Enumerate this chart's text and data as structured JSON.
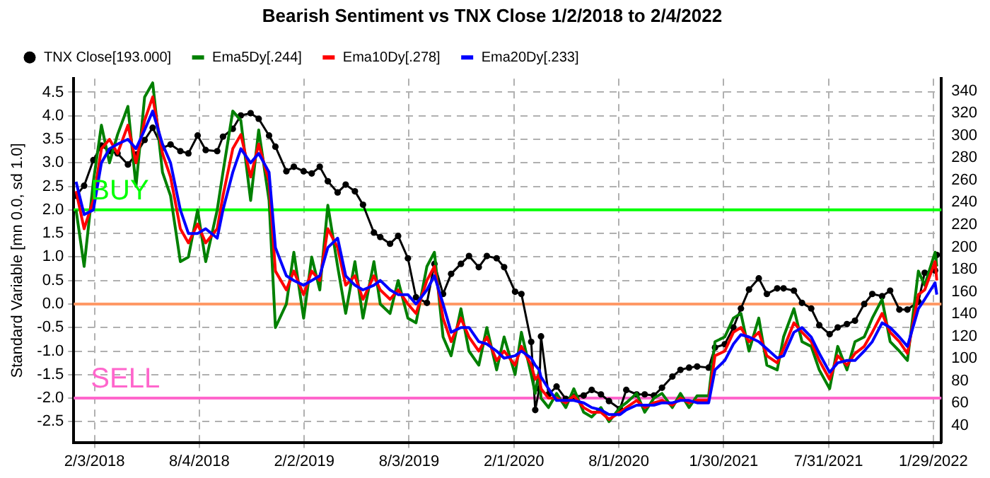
{
  "chart_data": {
    "type": "line",
    "title": "Bearish Sentiment vs TNX Close 1/2/2018 to 2/4/2022",
    "ylabel": "Standard Variable [mn 0.0, sd 1.0]",
    "x": [
      "2018-01-02",
      "2018-01-16",
      "2018-02-01",
      "2018-02-15",
      "2018-03-01",
      "2018-03-15",
      "2018-04-02",
      "2018-04-16",
      "2018-05-01",
      "2018-05-15",
      "2018-06-01",
      "2018-06-15",
      "2018-07-02",
      "2018-07-16",
      "2018-08-01",
      "2018-08-15",
      "2018-09-04",
      "2018-09-14",
      "2018-10-01",
      "2018-10-15",
      "2018-11-01",
      "2018-11-15",
      "2018-12-03",
      "2018-12-14",
      "2019-01-02",
      "2019-01-15",
      "2019-02-01",
      "2019-02-15",
      "2019-03-01",
      "2019-03-15",
      "2019-04-01",
      "2019-04-15",
      "2019-05-01",
      "2019-05-15",
      "2019-06-03",
      "2019-06-14",
      "2019-07-01",
      "2019-07-15",
      "2019-08-01",
      "2019-08-15",
      "2019-09-03",
      "2019-09-16",
      "2019-10-01",
      "2019-10-15",
      "2019-11-01",
      "2019-11-15",
      "2019-12-02",
      "2019-12-16",
      "2020-01-02",
      "2020-01-15",
      "2020-02-03",
      "2020-02-14",
      "2020-03-02",
      "2020-03-09",
      "2020-03-16",
      "2020-03-19",
      "2020-04-01",
      "2020-04-15",
      "2020-05-01",
      "2020-05-15",
      "2020-06-01",
      "2020-06-15",
      "2020-07-01",
      "2020-07-15",
      "2020-08-03",
      "2020-08-14",
      "2020-09-01",
      "2020-09-15",
      "2020-10-01",
      "2020-10-15",
      "2020-11-02",
      "2020-11-16",
      "2020-12-01",
      "2020-12-15",
      "2021-01-04",
      "2021-01-15",
      "2021-02-01",
      "2021-02-16",
      "2021-03-01",
      "2021-03-15",
      "2021-04-01",
      "2021-04-15",
      "2021-05-03",
      "2021-05-14",
      "2021-06-01",
      "2021-06-15",
      "2021-07-01",
      "2021-07-15",
      "2021-08-02",
      "2021-08-16",
      "2021-09-01",
      "2021-09-15",
      "2021-10-01",
      "2021-10-15",
      "2021-11-01",
      "2021-11-15",
      "2021-12-01",
      "2021-12-15",
      "2022-01-03",
      "2022-01-14",
      "2022-02-01",
      "2022-02-04"
    ],
    "series": [
      {
        "name": "TNX Close[193.000]",
        "color": "#000000",
        "axis": "y2",
        "marker": "circle",
        "values": [
          246,
          255,
          278,
          291,
          286,
          284,
          274,
          283,
          296,
          307,
          289,
          292,
          286,
          284,
          300,
          287,
          286,
          299,
          306,
          318,
          320,
          315,
          300,
          290,
          268,
          272,
          268,
          266,
          272,
          259,
          249,
          256,
          250,
          238,
          213,
          209,
          203,
          210,
          190,
          155,
          150,
          185,
          158,
          176,
          185,
          192,
          182,
          192,
          190,
          182,
          160,
          158,
          115,
          54,
          73,
          120,
          68,
          75,
          64,
          66,
          67,
          72,
          68,
          62,
          55,
          72,
          68,
          68,
          67,
          74,
          84,
          90,
          92,
          93,
          92,
          110,
          113,
          128,
          145,
          162,
          172,
          158,
          163,
          163,
          161,
          150,
          145,
          130,
          122,
          128,
          131,
          134,
          149,
          158,
          156,
          161,
          144,
          144,
          151,
          177,
          179,
          193
        ]
      },
      {
        "name": "Ema5Dy[.244]",
        "color": "#008000",
        "axis": "y",
        "marker": "none",
        "values": [
          2.0,
          0.8,
          2.6,
          3.8,
          3.0,
          3.6,
          4.2,
          2.5,
          4.4,
          4.7,
          2.8,
          2.3,
          0.9,
          1.0,
          2.0,
          0.9,
          2.0,
          2.8,
          4.1,
          3.9,
          2.2,
          3.7,
          2.2,
          -0.5,
          0.0,
          1.1,
          -0.3,
          1.0,
          0.3,
          2.1,
          0.8,
          -0.2,
          0.9,
          -0.3,
          0.9,
          0.0,
          -0.2,
          0.5,
          -0.3,
          -0.4,
          0.8,
          1.1,
          -0.7,
          -1.1,
          -0.1,
          -1.0,
          -1.3,
          -0.5,
          -1.4,
          -0.7,
          -1.5,
          -0.6,
          -1.5,
          -1.9,
          -1.4,
          -2.0,
          -2.2,
          -1.9,
          -2.2,
          -1.8,
          -2.3,
          -2.4,
          -2.2,
          -2.5,
          -2.2,
          -2.1,
          -1.9,
          -2.3,
          -2.0,
          -1.9,
          -2.2,
          -1.9,
          -2.2,
          -1.95,
          -1.95,
          -0.8,
          -0.7,
          -0.3,
          -0.2,
          -1.0,
          -0.3,
          -1.3,
          -1.4,
          -0.7,
          -0.1,
          -0.8,
          -0.9,
          -1.4,
          -1.8,
          -0.9,
          -1.4,
          -0.8,
          -0.7,
          -0.3,
          0.1,
          -0.8,
          -1.0,
          -1.2,
          0.7,
          0.4,
          1.1,
          0.8
        ]
      },
      {
        "name": "Ema10Dy[.278]",
        "color": "#ff0000",
        "axis": "y",
        "marker": "none",
        "values": [
          2.4,
          1.6,
          2.2,
          3.3,
          3.5,
          3.2,
          3.8,
          3.0,
          3.9,
          4.4,
          3.2,
          2.7,
          1.6,
          1.3,
          1.7,
          1.3,
          1.6,
          2.3,
          3.3,
          3.6,
          2.7,
          3.4,
          2.6,
          0.7,
          0.3,
          0.7,
          0.2,
          0.7,
          0.5,
          1.6,
          1.2,
          0.4,
          0.6,
          0.1,
          0.6,
          0.3,
          0.1,
          0.3,
          0.0,
          -0.2,
          0.5,
          0.8,
          -0.3,
          -0.8,
          -0.3,
          -0.7,
          -1.0,
          -0.7,
          -1.2,
          -1.0,
          -1.3,
          -0.9,
          -1.3,
          -1.6,
          -1.5,
          -1.8,
          -2.0,
          -2.0,
          -2.1,
          -1.95,
          -2.2,
          -2.3,
          -2.3,
          -2.45,
          -2.3,
          -2.2,
          -2.05,
          -2.2,
          -2.1,
          -2.05,
          -2.15,
          -2.0,
          -2.1,
          -2.05,
          -2.05,
          -1.1,
          -1.0,
          -0.6,
          -0.5,
          -0.8,
          -0.6,
          -1.1,
          -1.25,
          -0.95,
          -0.4,
          -0.6,
          -0.8,
          -1.2,
          -1.6,
          -1.1,
          -1.3,
          -1.05,
          -0.9,
          -0.6,
          -0.2,
          -0.6,
          -0.8,
          -1.05,
          0.2,
          0.3,
          0.9,
          0.5
        ]
      },
      {
        "name": "Ema20Dy[.233]",
        "color": "#0000ff",
        "axis": "y",
        "marker": "none",
        "values": [
          2.6,
          1.9,
          2.0,
          3.0,
          3.3,
          3.4,
          3.5,
          3.3,
          3.7,
          4.1,
          3.4,
          3.0,
          2.0,
          1.5,
          1.5,
          1.6,
          1.4,
          2.0,
          2.8,
          3.3,
          3.0,
          3.2,
          2.8,
          1.2,
          0.6,
          0.5,
          0.4,
          0.5,
          0.6,
          1.2,
          1.4,
          0.6,
          0.4,
          0.3,
          0.4,
          0.5,
          0.3,
          0.2,
          0.2,
          0.0,
          0.3,
          0.6,
          0.0,
          -0.6,
          -0.5,
          -0.5,
          -0.8,
          -0.85,
          -1.0,
          -1.15,
          -1.1,
          -1.0,
          -1.15,
          -1.3,
          -1.4,
          -1.55,
          -1.8,
          -2.05,
          -2.05,
          -2.05,
          -2.1,
          -2.2,
          -2.25,
          -2.35,
          -2.35,
          -2.25,
          -2.15,
          -2.15,
          -2.15,
          -2.1,
          -2.1,
          -2.05,
          -2.05,
          -2.1,
          -2.1,
          -1.4,
          -1.2,
          -0.85,
          -0.65,
          -0.7,
          -0.8,
          -0.95,
          -1.15,
          -1.1,
          -0.6,
          -0.5,
          -0.7,
          -1.05,
          -1.45,
          -1.25,
          -1.2,
          -1.2,
          -1.0,
          -0.8,
          -0.4,
          -0.5,
          -0.7,
          -0.9,
          -0.1,
          0.1,
          0.45,
          0.2
        ]
      }
    ],
    "xlim": [
      "2017-12-29",
      "2022-02-12"
    ],
    "xticks": [
      {
        "value": "2018-02-03",
        "label": "2/3/2018"
      },
      {
        "value": "2018-08-04",
        "label": "8/4/2018"
      },
      {
        "value": "2019-02-02",
        "label": "2/2/2019"
      },
      {
        "value": "2019-08-03",
        "label": "8/3/2019"
      },
      {
        "value": "2020-02-01",
        "label": "2/1/2020"
      },
      {
        "value": "2020-08-01",
        "label": "8/1/2020"
      },
      {
        "value": "2021-01-30",
        "label": "1/30/2021"
      },
      {
        "value": "2021-07-31",
        "label": "7/31/2021"
      },
      {
        "value": "2022-01-29",
        "label": "1/29/2022"
      }
    ],
    "ylim": [
      -2.94,
      4.79
    ],
    "yticks": [
      -2.5,
      {
        "value": -2,
        "label": "-2.0"
      },
      -1.5,
      {
        "value": -1,
        "label": "-1.0"
      },
      -0.5,
      {
        "value": 0,
        "label": "0.0"
      },
      0.5,
      {
        "value": 1,
        "label": "1.0"
      },
      1.5,
      {
        "value": 2,
        "label": "2.0"
      },
      2.5,
      {
        "value": 3,
        "label": "3.0"
      },
      3.5,
      {
        "value": 4,
        "label": "4.0"
      },
      4.5
    ],
    "y2lim": [
      25,
      351
    ],
    "y2ticks": [
      40,
      60,
      80,
      100,
      120,
      140,
      160,
      180,
      200,
      220,
      240,
      260,
      280,
      300,
      320,
      340
    ],
    "ref_lines": [
      {
        "axis": "y",
        "value": 2,
        "label": "BUY",
        "color": "#00ff00"
      },
      {
        "axis": "y",
        "value": 0,
        "label": null,
        "color": "#ff9966"
      },
      {
        "axis": "y",
        "value": -2,
        "label": "SELL",
        "color": "#ff66cc"
      }
    ],
    "grid": true,
    "legend": "top left"
  }
}
